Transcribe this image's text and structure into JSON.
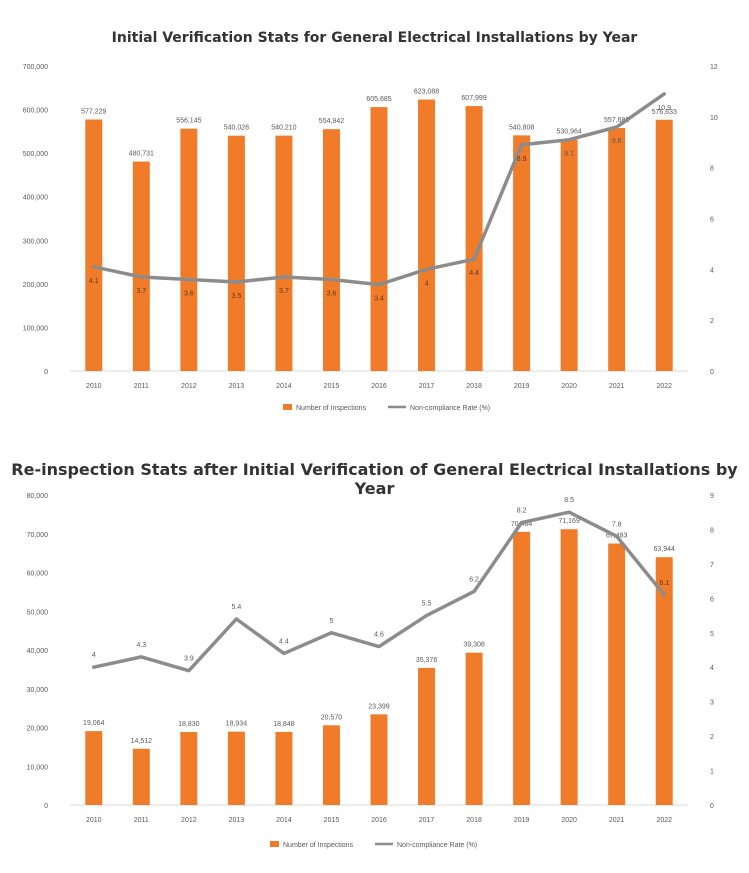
{
  "colors": {
    "bar": "#F07C2A",
    "line": "#8C8C8C",
    "axis_text": "#595959",
    "grid": "#D9D9D9"
  },
  "chart_data": [
    {
      "type": "bar",
      "title": "Initial Verification Stats for General Electrical Installations by Year",
      "categories": [
        "2010",
        "2011",
        "2012",
        "2013",
        "2014",
        "2015",
        "2016",
        "2017",
        "2018",
        "2019",
        "2020",
        "2021",
        "2022"
      ],
      "series": [
        {
          "name": "Number of Inspections",
          "type": "bar",
          "axis": "left",
          "values": [
            577229,
            480731,
            556145,
            540028,
            540210,
            554942,
            605685,
            623088,
            607999,
            540808,
            530964,
            557682,
            576633
          ],
          "labels": [
            "577,229",
            "480,731",
            "556,145",
            "540,028",
            "540,210",
            "554,942",
            "605,685",
            "623,088",
            "607,999",
            "540,808",
            "530,964",
            "557,682",
            "576,633"
          ]
        },
        {
          "name": "Non-compliance Rate (%)",
          "type": "line",
          "axis": "right",
          "values": [
            4.1,
            3.7,
            3.6,
            3.5,
            3.7,
            3.6,
            3.4,
            4,
            4.4,
            8.9,
            9.1,
            9.6,
            10.9
          ],
          "labels": [
            "4.1",
            "3.7",
            "3.6",
            "3.5",
            "3.7",
            "3.6",
            "3.4",
            "4",
            "4.4",
            "8.9",
            "9.1",
            "9.6",
            "10.9"
          ]
        }
      ],
      "y_left": {
        "ylim": [
          0,
          700000
        ],
        "ticks": [
          "0",
          "100,000",
          "200,000",
          "300,000",
          "400,000",
          "500,000",
          "600,000",
          "700,000"
        ]
      },
      "y_right": {
        "ylim": [
          0,
          12
        ],
        "ticks": [
          "0",
          "2",
          "4",
          "6",
          "8",
          "10",
          "12"
        ]
      },
      "legend": "bottom",
      "grid": false
    },
    {
      "type": "bar",
      "title": "Re-inspection Stats after Initial Verification of General Electrical Installations by Year",
      "categories": [
        "2010",
        "2011",
        "2012",
        "2013",
        "2014",
        "2015",
        "2016",
        "2017",
        "2018",
        "2019",
        "2020",
        "2021",
        "2022"
      ],
      "series": [
        {
          "name": "Number of Inspections",
          "type": "bar",
          "axis": "left",
          "values": [
            19064,
            14512,
            18830,
            18934,
            18848,
            20570,
            23399,
            35376,
            39308,
            70484,
            71169,
            67483,
            63944
          ],
          "labels": [
            "19,064",
            "14,512",
            "18,830",
            "18,934",
            "18,848",
            "20,570",
            "23,399",
            "35,376",
            "39,308",
            "70,484",
            "71,169",
            "67,483",
            "63,944"
          ]
        },
        {
          "name": "Non-compliance Rate (%)",
          "type": "line",
          "axis": "right",
          "values": [
            4,
            4.3,
            3.9,
            5.4,
            4.4,
            5,
            4.6,
            5.5,
            6.2,
            8.2,
            8.5,
            7.8,
            6.1
          ],
          "labels": [
            "4",
            "4.3",
            "3.9",
            "5.4",
            "4.4",
            "5",
            "4.6",
            "5.5",
            "6.2",
            "8.2",
            "8.5",
            "7.8",
            "6.1"
          ]
        }
      ],
      "y_left": {
        "ylim": [
          0,
          80000
        ],
        "ticks": [
          "0",
          "10,000",
          "20,000",
          "30,000",
          "40,000",
          "50,000",
          "60,000",
          "70,000",
          "80,000"
        ]
      },
      "y_right": {
        "ylim": [
          0,
          9
        ],
        "ticks": [
          "0",
          "1",
          "2",
          "3",
          "4",
          "5",
          "6",
          "7",
          "8",
          "9"
        ]
      },
      "legend": "bottom",
      "grid": false
    }
  ]
}
